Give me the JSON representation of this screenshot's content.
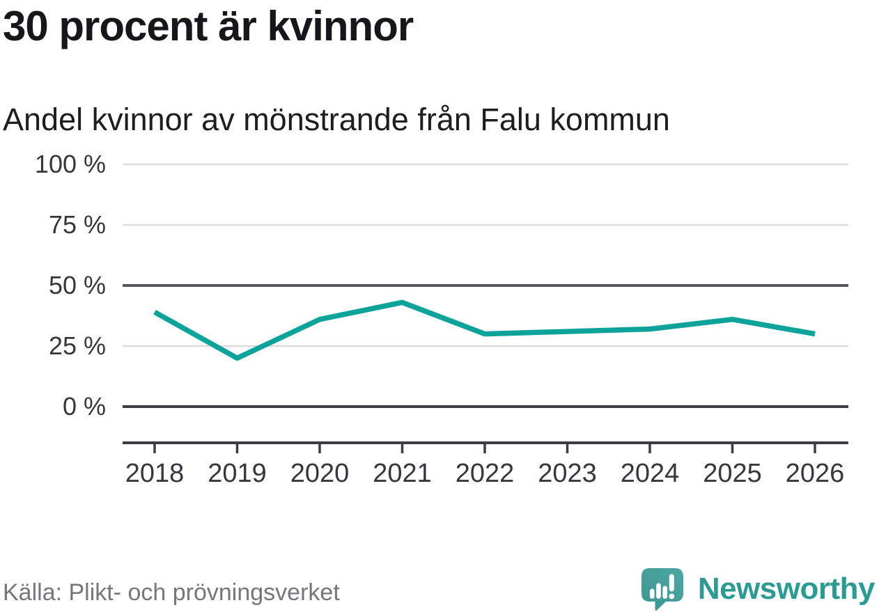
{
  "header": {
    "title": "30 procent är kvinnor",
    "subtitle": "Andel kvinnor av mönstrande från Falu kommun"
  },
  "chart_data": {
    "type": "line",
    "title": "30 procent är kvinnor",
    "subtitle": "Andel kvinnor av mönstrande från Falu kommun",
    "categories": [
      "2018",
      "2019",
      "2020",
      "2021",
      "2022",
      "2023",
      "2024",
      "2025",
      "2026"
    ],
    "series": [
      {
        "name": "Andel kvinnor av mönstrande från Falu kommun",
        "values": [
          39,
          20,
          36,
          43,
          30,
          31,
          32,
          36,
          30
        ],
        "color": "#0da39a"
      }
    ],
    "unit": "%",
    "ylim": [
      0,
      100
    ],
    "yticks": [
      0,
      25,
      50,
      75,
      100
    ],
    "ytick_labels": [
      "0 %",
      "25 %",
      "50 %",
      "75 %",
      "100 %"
    ],
    "xlabel": "",
    "ylabel": "",
    "grid": true,
    "legend": "none",
    "emphasized_gridlines": [
      0,
      50
    ]
  },
  "footer": {
    "source": "Källa: Plikt- och prövningsverket",
    "brand": "Newsworthy"
  },
  "colors": {
    "accent_teal": "#0da39a",
    "brand_teal": "#2e9a94",
    "axis_dark": "#3c3c42",
    "grid_mid": "#55555e",
    "grid_light": "#dcdcde",
    "text_dark": "#16161b",
    "text_gray": "#76767e"
  },
  "icons": {
    "newsworthy_icon": "speech-bubble-bar-chart-exclamation"
  }
}
